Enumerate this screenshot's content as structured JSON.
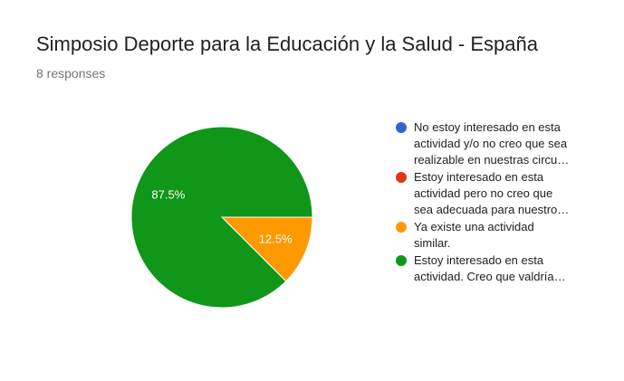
{
  "header": {
    "title": "Simposio Deporte para la Educación y la Salud - España",
    "responses": "8 responses"
  },
  "legend": {
    "items": [
      {
        "label_lines": [
          "No estoy interesado en esta",
          "actividad y/o no creo que sea",
          "realizable en nuestras circu…"
        ],
        "color": "#3366cc"
      },
      {
        "label_lines": [
          "Estoy interesado en esta",
          "actividad pero no creo que",
          "sea adecuada para nuestro…"
        ],
        "color": "#dc3912"
      },
      {
        "label_lines": [
          "Ya existe una actividad",
          "similar."
        ],
        "color": "#ff9900"
      },
      {
        "label_lines": [
          "Estoy interesado en esta",
          "actividad. Creo que valdría…"
        ],
        "color": "#109618"
      }
    ]
  },
  "chart_data": {
    "type": "pie",
    "title": "Simposio Deporte para la Educación y la Salud - España",
    "subtitle": "8 responses",
    "slices": [
      {
        "label": "No estoy interesado en esta actividad y/o no creo que sea realizable en nuestras circu…",
        "value": 0,
        "percent_label": "",
        "color": "#3366cc"
      },
      {
        "label": "Estoy interesado en esta actividad pero no creo que sea adecuada para nuestro…",
        "value": 0,
        "percent_label": "",
        "color": "#dc3912"
      },
      {
        "label": "Ya existe una actividad similar.",
        "value": 1,
        "percent_label": "12.5%",
        "color": "#ff9900"
      },
      {
        "label": "Estoy interesado en esta actividad. Creo que valdría…",
        "value": 7,
        "percent_label": "87.5%",
        "color": "#109618"
      }
    ],
    "legend_position": "right"
  }
}
